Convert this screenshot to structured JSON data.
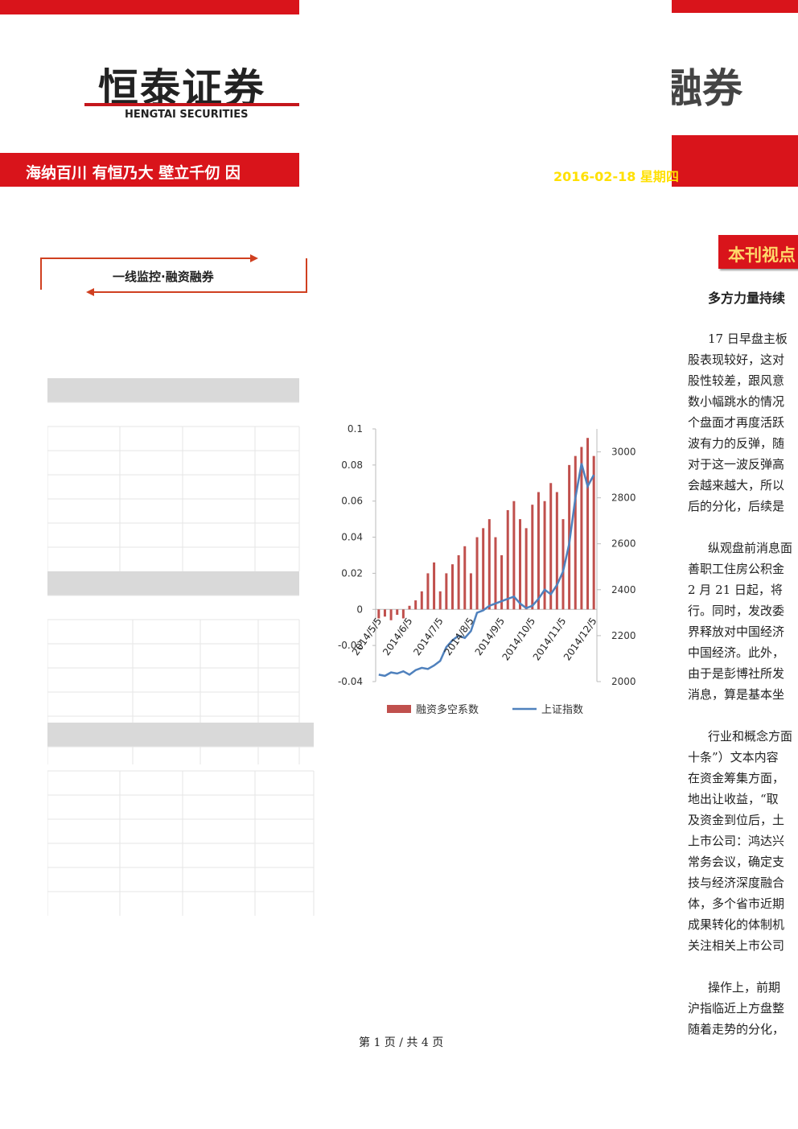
{
  "header": {
    "logo": "恒泰证券",
    "logo_en": "HENGTAI SECURITIES",
    "slogan": "海纳百川 有恒乃大 壁立千仞 因",
    "right_logo": "融券",
    "date": "2016-02-18 星期四"
  },
  "section": {
    "title": "一线监控·融资融券"
  },
  "chart_data": {
    "type": "bar-line",
    "categories": [
      "2014/5/5",
      null,
      null,
      null,
      null,
      "2014/6/5",
      null,
      null,
      null,
      null,
      "2014/7/5",
      null,
      null,
      null,
      null,
      "2014/8/5",
      null,
      null,
      null,
      null,
      "2014/9/5",
      null,
      null,
      null,
      null,
      "2014/10/5",
      null,
      null,
      null,
      null,
      "2014/11/5",
      null,
      null,
      null,
      null,
      "2014/12/5"
    ],
    "series": [
      {
        "name": "融资多空系数",
        "color": "#c0504d",
        "type": "bar",
        "values": [
          -0.005,
          -0.004,
          -0.006,
          -0.003,
          -0.005,
          0.002,
          0.005,
          0.01,
          0.02,
          0.026,
          0.01,
          0.02,
          0.025,
          0.03,
          0.035,
          0.02,
          0.04,
          0.045,
          0.05,
          0.04,
          0.03,
          0.055,
          0.06,
          0.05,
          0.045,
          0.058,
          0.065,
          0.06,
          0.07,
          0.065,
          0.05,
          0.08,
          0.085,
          0.09,
          0.095,
          0.085
        ]
      },
      {
        "name": "上证指数",
        "color": "#4f81bd",
        "type": "line",
        "axis": "y2",
        "values": [
          2030,
          2025,
          2040,
          2035,
          2045,
          2030,
          2050,
          2060,
          2055,
          2070,
          2090,
          2150,
          2180,
          2200,
          2190,
          2220,
          2300,
          2310,
          2330,
          2340,
          2350,
          2360,
          2370,
          2340,
          2320,
          2330,
          2360,
          2400,
          2380,
          2420,
          2480,
          2600,
          2800,
          2950,
          2850,
          2900
        ]
      }
    ],
    "ylim": [
      -0.04,
      0.1
    ],
    "yticks": [
      -0.04,
      -0.02,
      0,
      0.02,
      0.04,
      0.06,
      0.08,
      0.1
    ],
    "y2lim": [
      2000,
      3100
    ],
    "y2ticks": [
      2000,
      2200,
      2400,
      2600,
      2800,
      3000
    ]
  },
  "article": {
    "badge": "本刊视点",
    "title": "多方力量持续",
    "paragraphs": [
      [
        "17 日早盘主板",
        "股表现较好，这对",
        "股性较差，跟风意",
        "数小幅跳水的情况",
        "个盘面才再度活跃",
        "波有力的反弹，随",
        "对于这一波反弹高",
        "会越来越大，所以",
        "后的分化，后续是"
      ],
      [
        "纵观盘前消息面",
        "善职工住房公积金",
        "2 月 21 日起，将",
        "行。同时，发改委",
        "界释放对中国经济",
        "中国经济。此外，",
        "由于是彭博社所发",
        "消息，算是基本坐"
      ],
      [
        "行业和概念方面",
        "十条”）文本内容",
        "在资金筹集方面，",
        "地出让收益，“取",
        "及资金到位后，土",
        "上市公司：鸿达兴",
        "常务会议，确定支",
        "技与经济深度融合",
        "体，多个省市近期",
        "成果转化的体制机",
        "关注相关上市公司"
      ],
      [
        "操作上，前期",
        "沪指临近上方盘整",
        "随着走势的分化，"
      ]
    ]
  },
  "footer": {
    "page": "第 1 页 / 共 4 页"
  }
}
